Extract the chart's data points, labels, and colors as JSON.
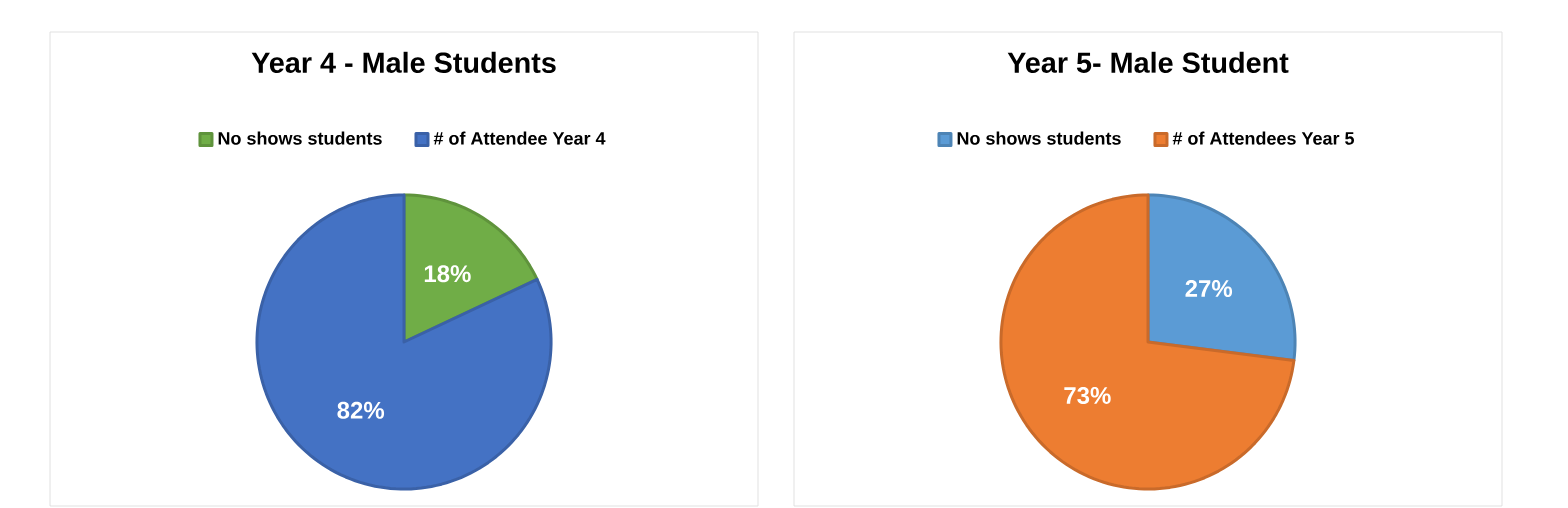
{
  "chart_data": [
    {
      "type": "pie",
      "title": "Year 4 - Male Students",
      "categories": [
        "No shows students",
        "# of Attendee Year 4"
      ],
      "values": [
        18,
        82
      ],
      "colors": [
        "#70ad47",
        "#4472c4"
      ],
      "value_labels": [
        "18%",
        "82%"
      ],
      "legend": "top"
    },
    {
      "type": "pie",
      "title": "Year 5- Male Student",
      "categories": [
        "No shows students",
        "# of Attendees Year 5"
      ],
      "values": [
        27,
        73
      ],
      "colors": [
        "#5b9bd5",
        "#ed7d31"
      ],
      "value_labels": [
        "27%",
        "73%"
      ],
      "legend": "top"
    }
  ]
}
